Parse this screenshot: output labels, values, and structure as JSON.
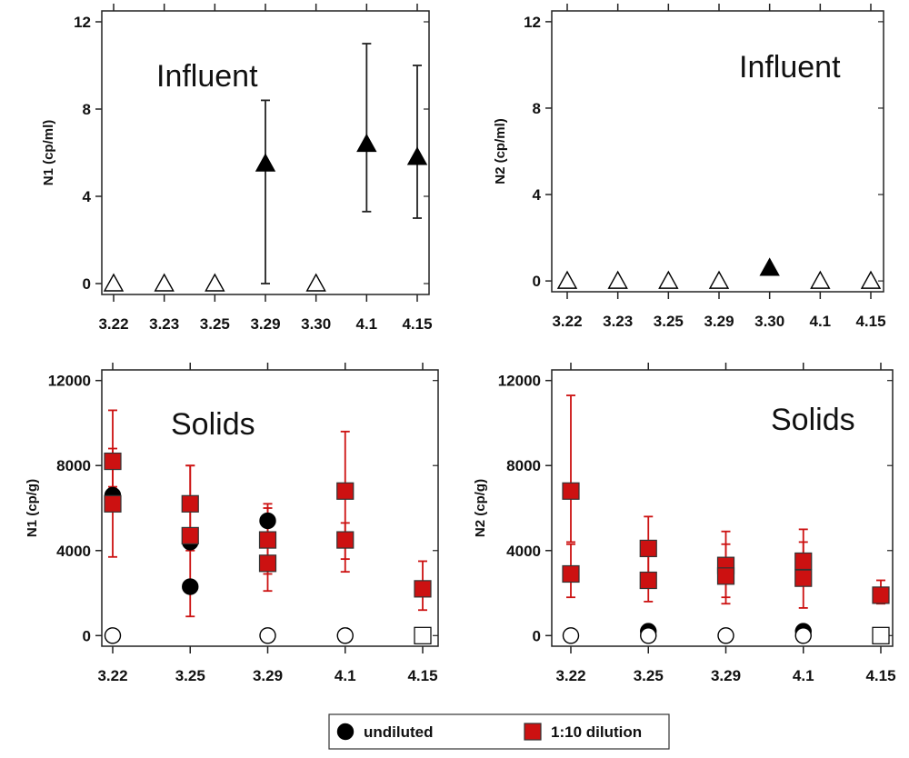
{
  "chart_data": [
    {
      "type": "scatter",
      "panel_title": "Influent",
      "ylabel": "N1 (cp/ml)",
      "xlabel": "",
      "categories": [
        "3.22",
        "3.23",
        "3.25",
        "3.29",
        "3.30",
        "4.1",
        "4.15"
      ],
      "ylim": [
        -0.5,
        12.5
      ],
      "yticks": [
        0,
        4,
        8,
        12
      ],
      "yticklabels": [
        "0",
        "4",
        "8",
        "12"
      ],
      "series": [
        {
          "marker": "triangle-open",
          "color": "#000000",
          "points": [
            {
              "x": "3.22",
              "y": 0
            },
            {
              "x": "3.23",
              "y": 0
            },
            {
              "x": "3.25",
              "y": 0
            },
            {
              "x": "3.30",
              "y": 0
            }
          ]
        },
        {
          "marker": "triangle-filled",
          "color": "#000000",
          "points": [
            {
              "x": "3.29",
              "y": 5.5,
              "low": 0,
              "high": 8.4
            },
            {
              "x": "4.1",
              "y": 6.4,
              "low": 3.3,
              "high": 11.0
            },
            {
              "x": "4.15",
              "y": 5.8,
              "low": 3.0,
              "high": 10.0
            }
          ]
        }
      ]
    },
    {
      "type": "scatter",
      "panel_title": "Influent",
      "ylabel": "N2 (cp/ml)",
      "xlabel": "",
      "categories": [
        "3.22",
        "3.23",
        "3.25",
        "3.29",
        "3.30",
        "4.1",
        "4.15"
      ],
      "ylim": [
        -0.5,
        12.5
      ],
      "yticks": [
        0,
        4,
        8,
        12
      ],
      "yticklabels": [
        "0",
        "4",
        "8",
        "12"
      ],
      "series": [
        {
          "marker": "triangle-open",
          "color": "#000000",
          "points": [
            {
              "x": "3.22",
              "y": 0
            },
            {
              "x": "3.23",
              "y": 0
            },
            {
              "x": "3.25",
              "y": 0
            },
            {
              "x": "3.29",
              "y": 0
            },
            {
              "x": "4.1",
              "y": 0
            },
            {
              "x": "4.15",
              "y": 0
            }
          ]
        },
        {
          "marker": "triangle-filled",
          "color": "#000000",
          "points": [
            {
              "x": "3.30",
              "y": 0.6
            }
          ]
        }
      ]
    },
    {
      "type": "scatter",
      "panel_title": "Solids",
      "ylabel": "N1 (cp/g)",
      "xlabel": "",
      "categories": [
        "3.22",
        "3.25",
        "3.29",
        "4.1",
        "4.15"
      ],
      "ylim": [
        -500,
        12500
      ],
      "yticks": [
        0,
        4000,
        8000,
        12000
      ],
      "yticklabels": [
        "0",
        "4000",
        "8000",
        "12000"
      ],
      "series": [
        {
          "name": "undiluted",
          "marker": "circle-filled",
          "color": "#000000",
          "points": [
            {
              "x": "3.22",
              "y": 6600
            },
            {
              "x": "3.25",
              "y": 4400
            },
            {
              "x": "3.25",
              "y": 2300
            },
            {
              "x": "3.29",
              "y": 5400
            }
          ]
        },
        {
          "marker": "circle-open",
          "color": "#000000",
          "points": [
            {
              "x": "3.22",
              "y": 0
            },
            {
              "x": "3.29",
              "y": 0
            },
            {
              "x": "4.1",
              "y": 0
            }
          ]
        },
        {
          "name": "1:10 dilution",
          "marker": "square-filled",
          "color": "#cc1111",
          "points": [
            {
              "x": "3.22",
              "y": 8200,
              "low": 7000,
              "high": 10600
            },
            {
              "x": "3.22",
              "y": 6200,
              "low": 3700,
              "high": 8800
            },
            {
              "x": "3.25",
              "y": 6200,
              "low": 4000,
              "high": 8000
            },
            {
              "x": "3.25",
              "y": 4700,
              "low": 900,
              "high": 8000
            },
            {
              "x": "3.29",
              "y": 4500,
              "low": 2900,
              "high": 6000
            },
            {
              "x": "3.29",
              "y": 3400,
              "low": 2100,
              "high": 6200
            },
            {
              "x": "4.1",
              "y": 6800,
              "low": 3600,
              "high": 9600
            },
            {
              "x": "4.1",
              "y": 4500,
              "low": 3000,
              "high": 5300
            },
            {
              "x": "4.15",
              "y": 2200,
              "low": 1200,
              "high": 3500
            }
          ]
        },
        {
          "marker": "square-open",
          "color": "#000000",
          "points": [
            {
              "x": "4.15",
              "y": 0
            }
          ]
        }
      ]
    },
    {
      "type": "scatter",
      "panel_title": "Solids",
      "ylabel": "N2 (cp/g)",
      "xlabel": "",
      "categories": [
        "3.22",
        "3.25",
        "3.29",
        "4.1",
        "4.15"
      ],
      "ylim": [
        -500,
        12500
      ],
      "yticks": [
        0,
        4000,
        8000,
        12000
      ],
      "yticklabels": [
        "0",
        "4000",
        "8000",
        "12000"
      ],
      "series": [
        {
          "name": "undiluted",
          "marker": "circle-filled",
          "color": "#000000",
          "points": [
            {
              "x": "3.25",
              "y": 200
            },
            {
              "x": "4.1",
              "y": 200
            }
          ]
        },
        {
          "marker": "circle-open",
          "color": "#000000",
          "points": [
            {
              "x": "3.22",
              "y": 0
            },
            {
              "x": "3.25",
              "y": 0
            },
            {
              "x": "3.29",
              "y": 0
            },
            {
              "x": "4.1",
              "y": 0
            }
          ]
        },
        {
          "name": "1:10 dilution",
          "marker": "square-filled",
          "color": "#cc1111",
          "points": [
            {
              "x": "3.22",
              "y": 6800,
              "low": 4400,
              "high": 11300
            },
            {
              "x": "3.22",
              "y": 2900,
              "low": 1800,
              "high": 4300
            },
            {
              "x": "3.25",
              "y": 4100,
              "low": 2800,
              "high": 5600
            },
            {
              "x": "3.25",
              "y": 2600,
              "low": 1600,
              "high": 4100
            },
            {
              "x": "3.29",
              "y": 3300,
              "low": 1800,
              "high": 4900
            },
            {
              "x": "3.29",
              "y": 2800,
              "low": 1500,
              "high": 4300
            },
            {
              "x": "4.1",
              "y": 3500,
              "low": 2500,
              "high": 5000
            },
            {
              "x": "4.1",
              "y": 2700,
              "low": 1300,
              "high": 4400
            },
            {
              "x": "4.15",
              "y": 1900,
              "low": 1500,
              "high": 2600
            }
          ]
        },
        {
          "marker": "square-open",
          "color": "#000000",
          "points": [
            {
              "x": "4.15",
              "y": 0
            }
          ]
        }
      ]
    }
  ],
  "legend": {
    "placement": "bottom-center",
    "items": [
      {
        "label": "undiluted",
        "marker": "circle-filled",
        "color": "#000000"
      },
      {
        "label": "1:10 dilution",
        "marker": "square-filled",
        "color": "#cc1111"
      }
    ]
  }
}
